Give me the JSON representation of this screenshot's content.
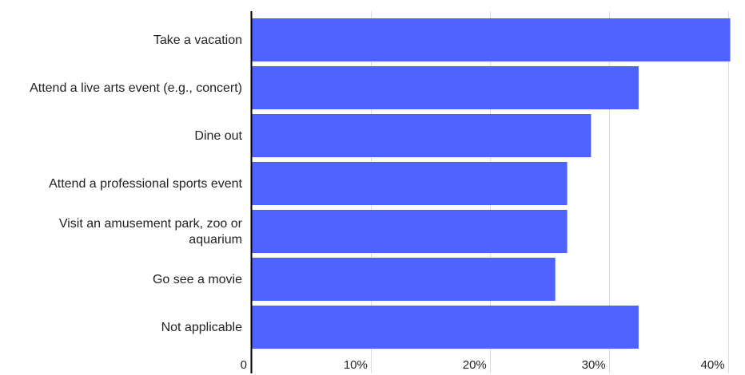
{
  "chart_data": {
    "type": "bar",
    "orientation": "horizontal",
    "categories": [
      [
        "Take a vacation"
      ],
      [
        "Attend a live arts event (e.g., concert)"
      ],
      [
        "Dine out"
      ],
      [
        "Attend a professional sports event"
      ],
      [
        "Visit an amusement park, zoo or",
        "aquarium"
      ],
      [
        "Go see a movie"
      ],
      [
        "Not applicable"
      ]
    ],
    "values": [
      40.2,
      32.5,
      28.5,
      26.5,
      26.5,
      25.5,
      32.5
    ],
    "unit": "%",
    "xlim": [
      0,
      40.5
    ],
    "ticks": [
      0,
      10,
      20,
      30,
      40
    ],
    "tick_labels": [
      "0",
      "10%",
      "20%",
      "30%",
      "40%"
    ],
    "grid": true,
    "legend": "none",
    "title": "",
    "xlabel": "",
    "ylabel": "",
    "colors": {
      "bar": "#4d63fb",
      "axis": "#000000",
      "grid": "#dddddd",
      "text": "#222222"
    }
  }
}
